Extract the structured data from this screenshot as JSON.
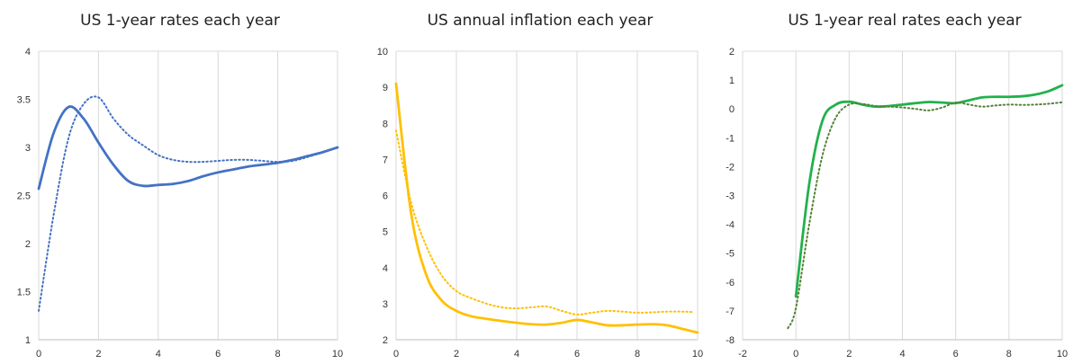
{
  "chart_data": [
    {
      "type": "line",
      "title": "US 1-year rates each year",
      "xlabel": "",
      "ylabel": "",
      "xlim": [
        0,
        10
      ],
      "ylim": [
        1,
        4
      ],
      "xticks": [
        0,
        2,
        4,
        6,
        8,
        10
      ],
      "yticks": [
        1,
        1.5,
        2,
        2.5,
        3,
        3.5,
        4
      ],
      "ytick_labels": [
        "1",
        "1.5",
        "2",
        "2.5",
        "3",
        "3.5",
        "4"
      ],
      "grid": "vertical",
      "series": [
        {
          "style": "solid",
          "color": "#4472c4",
          "x": [
            0,
            0.5,
            1,
            1.5,
            2,
            2.5,
            3,
            3.5,
            4,
            4.5,
            5,
            5.5,
            6,
            6.5,
            7,
            7.5,
            8,
            8.5,
            9,
            9.5,
            10
          ],
          "y": [
            2.57,
            3.15,
            3.42,
            3.3,
            3.05,
            2.82,
            2.65,
            2.6,
            2.61,
            2.62,
            2.65,
            2.7,
            2.74,
            2.77,
            2.8,
            2.82,
            2.84,
            2.87,
            2.91,
            2.95,
            3.0
          ]
        },
        {
          "style": "dotted",
          "color": "#4472c4",
          "x": [
            0,
            0.5,
            1,
            1.5,
            2,
            2.5,
            3,
            3.5,
            4,
            4.5,
            5,
            5.5,
            6,
            6.5,
            7,
            7.5,
            8,
            8.5,
            9,
            9.5,
            10
          ],
          "y": [
            1.3,
            2.3,
            3.1,
            3.45,
            3.52,
            3.3,
            3.13,
            3.02,
            2.92,
            2.87,
            2.85,
            2.85,
            2.86,
            2.87,
            2.87,
            2.86,
            2.85,
            2.86,
            2.9,
            2.95,
            3.0
          ]
        }
      ]
    },
    {
      "type": "line",
      "title": "US annual inflation each year",
      "xlabel": "",
      "ylabel": "",
      "xlim": [
        0,
        10
      ],
      "ylim": [
        2,
        10
      ],
      "xticks": [
        0,
        2,
        4,
        6,
        8,
        10
      ],
      "yticks": [
        2,
        3,
        4,
        5,
        6,
        7,
        8,
        9,
        10
      ],
      "ytick_labels": [
        "2",
        "3",
        "4",
        "5",
        "6",
        "7",
        "8",
        "9",
        "10"
      ],
      "grid": "vertical",
      "series": [
        {
          "style": "solid",
          "color": "#ffc000",
          "x": [
            0,
            0.5,
            1,
            1.5,
            2,
            2.5,
            3,
            3.5,
            4,
            4.5,
            5,
            5.5,
            6,
            6.5,
            7,
            7.5,
            8,
            8.5,
            9,
            9.5,
            10
          ],
          "y": [
            9.1,
            5.5,
            3.8,
            3.1,
            2.8,
            2.65,
            2.58,
            2.52,
            2.47,
            2.43,
            2.42,
            2.47,
            2.55,
            2.48,
            2.4,
            2.4,
            2.42,
            2.43,
            2.4,
            2.3,
            2.2
          ]
        },
        {
          "style": "dotted",
          "color": "#ffc000",
          "x": [
            0,
            0.5,
            1,
            1.5,
            2,
            2.5,
            3,
            3.5,
            4,
            4.5,
            5,
            5.5,
            6,
            6.5,
            7,
            7.5,
            8,
            8.5,
            9,
            9.5,
            9.8
          ],
          "y": [
            7.8,
            5.8,
            4.6,
            3.8,
            3.35,
            3.15,
            3.0,
            2.9,
            2.87,
            2.9,
            2.92,
            2.8,
            2.7,
            2.75,
            2.8,
            2.78,
            2.75,
            2.76,
            2.78,
            2.78,
            2.77
          ]
        }
      ]
    },
    {
      "type": "line",
      "title": "US 1-year real rates each year",
      "xlabel": "",
      "ylabel": "",
      "xlim": [
        -2,
        10
      ],
      "ylim": [
        -8,
        2
      ],
      "xticks": [
        -2,
        0,
        2,
        4,
        6,
        8,
        10
      ],
      "yticks": [
        -8,
        -7,
        -6,
        -5,
        -4,
        -3,
        -2,
        -1,
        0,
        1,
        2
      ],
      "ytick_labels": [
        "-8",
        "-7",
        "-6",
        "-5",
        "-4",
        "-3",
        "-2",
        "-1",
        "0",
        "1",
        "2"
      ],
      "grid": "vertical",
      "series": [
        {
          "style": "solid",
          "color": "#22b14c",
          "x": [
            0,
            0.5,
            1,
            1.5,
            2,
            2.5,
            3,
            3.5,
            4,
            4.5,
            5,
            5.5,
            6,
            6.5,
            7,
            7.5,
            8,
            8.5,
            9,
            9.5,
            10
          ],
          "y": [
            -6.5,
            -2.6,
            -0.4,
            0.15,
            0.25,
            0.15,
            0.08,
            0.1,
            0.15,
            0.2,
            0.24,
            0.22,
            0.2,
            0.3,
            0.4,
            0.42,
            0.42,
            0.44,
            0.5,
            0.62,
            0.82
          ]
        },
        {
          "style": "dotted",
          "color": "#548235",
          "x": [
            -0.3,
            0,
            0.5,
            1,
            1.5,
            2,
            2.5,
            3,
            3.5,
            4,
            4.5,
            5,
            5.5,
            6,
            6.5,
            7,
            7.5,
            8,
            8.5,
            9,
            9.5,
            10
          ],
          "y": [
            -7.6,
            -6.9,
            -4.0,
            -1.6,
            -0.3,
            0.15,
            0.17,
            0.1,
            0.08,
            0.05,
            0.0,
            -0.05,
            0.05,
            0.22,
            0.15,
            0.08,
            0.12,
            0.15,
            0.14,
            0.15,
            0.18,
            0.23
          ]
        }
      ]
    }
  ]
}
